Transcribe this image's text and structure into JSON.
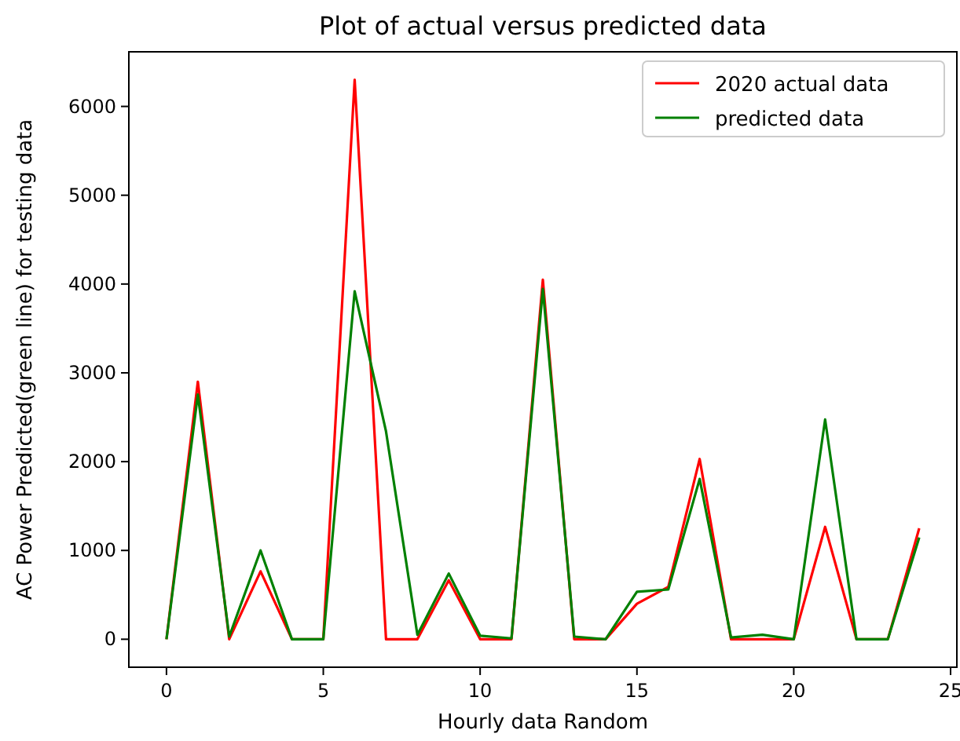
{
  "chart_data": {
    "type": "line",
    "title": "Plot of actual versus predicted data",
    "xlabel": "Hourly data Random",
    "ylabel": "AC Power Predicted(green line) for testing data",
    "x": [
      0,
      1,
      2,
      3,
      4,
      5,
      6,
      7,
      8,
      9,
      10,
      11,
      12,
      13,
      14,
      15,
      16,
      17,
      18,
      19,
      20,
      21,
      22,
      23,
      24
    ],
    "series": [
      {
        "name": "2020 actual data",
        "color": "#ff0000",
        "values": [
          0,
          2900,
          0,
          765,
          0,
          0,
          6300,
          0,
          0,
          665,
          0,
          0,
          4048,
          0,
          0,
          400,
          590,
          2030,
          0,
          0,
          0,
          1265,
          0,
          0,
          1250
        ]
      },
      {
        "name": "predicted data",
        "color": "#008000",
        "values": [
          0,
          2755,
          30,
          1000,
          0,
          0,
          3918,
          2340,
          50,
          740,
          40,
          10,
          3945,
          30,
          0,
          535,
          560,
          1805,
          20,
          50,
          0,
          2475,
          0,
          0,
          1145
        ]
      }
    ],
    "xlim": [
      -1.2,
      25.2
    ],
    "ylim": [
      -315,
      6615
    ],
    "xticks": [
      0,
      5,
      10,
      15,
      20,
      25
    ],
    "yticks": [
      0,
      1000,
      2000,
      3000,
      4000,
      5000,
      6000
    ],
    "grid": false,
    "legend": "top right",
    "line_style": "solid",
    "marker": "none"
  }
}
